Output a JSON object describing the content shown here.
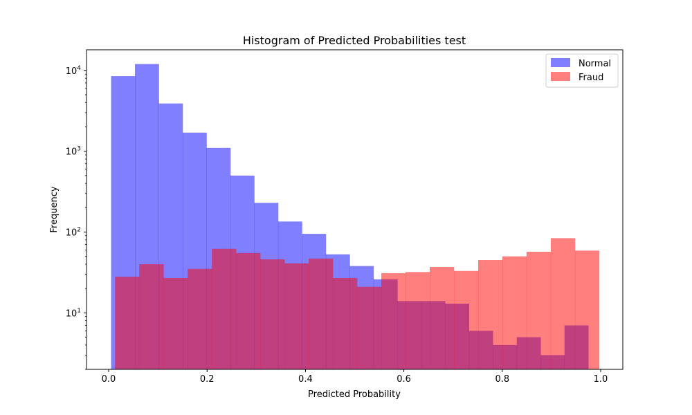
{
  "chart_data": {
    "type": "bar",
    "title": "Histogram of Predicted Probabilities test",
    "xlabel": "Predicted Probability",
    "ylabel": "Frequency",
    "xlim": [
      -0.045,
      1.045
    ],
    "ylim": [
      2,
      18000
    ],
    "yscale": "log",
    "xticks": [
      0.0,
      0.2,
      0.4,
      0.6,
      0.8,
      1.0
    ],
    "xtick_labels": [
      "0.0",
      "0.2",
      "0.4",
      "0.6",
      "0.8",
      "1.0"
    ],
    "yticks": [
      10,
      100,
      1000,
      10000
    ],
    "ytick_labels": [
      {
        "base": "10",
        "exp": "1"
      },
      {
        "base": "10",
        "exp": "2"
      },
      {
        "base": "10",
        "exp": "3"
      },
      {
        "base": "10",
        "exp": "4"
      }
    ],
    "legend_position": "top-right",
    "series": [
      {
        "name": "Normal",
        "color": "#0000ff",
        "alpha": 0.5,
        "bin_start": 0.005,
        "bin_width": 0.0485,
        "values": [
          8500,
          12000,
          3900,
          1700,
          1100,
          500,
          230,
          135,
          95,
          53,
          38,
          26,
          14,
          14,
          13,
          6,
          4,
          5,
          3,
          7
        ]
      },
      {
        "name": "Fraud",
        "color": "#ff0000",
        "alpha": 0.5,
        "bin_start": 0.013,
        "bin_width": 0.0492,
        "values": [
          28,
          40,
          27,
          35,
          62,
          55,
          46,
          41,
          47,
          27,
          21,
          31,
          32,
          37,
          33,
          45,
          50,
          57,
          84,
          59
        ]
      }
    ]
  }
}
